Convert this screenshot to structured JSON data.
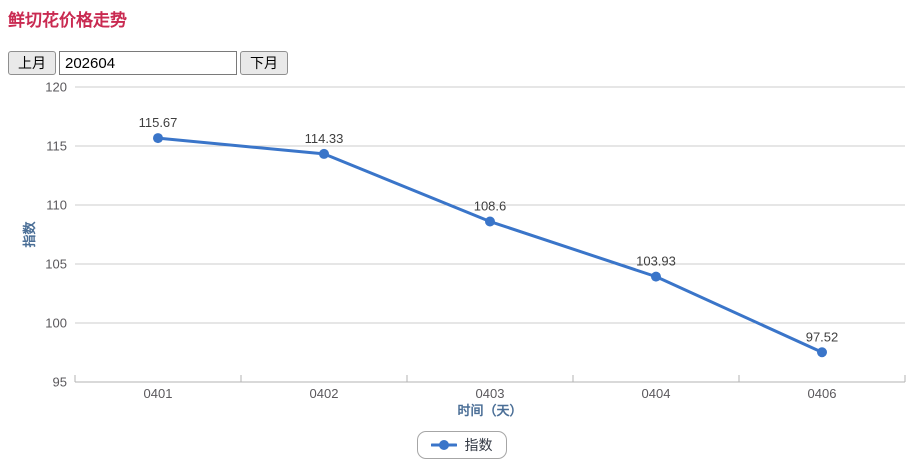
{
  "header": {
    "title": "鲜切花价格走势"
  },
  "controls": {
    "prev_label": "上月",
    "month_value": "202604",
    "next_label": "下月"
  },
  "chart_data": {
    "type": "line",
    "categories": [
      "0401",
      "0402",
      "0403",
      "0404",
      "0406"
    ],
    "series": [
      {
        "name": "指数",
        "values": [
          115.67,
          114.33,
          108.6,
          103.93,
          97.52
        ],
        "color": "#3a75c9"
      }
    ],
    "xlabel": "时间（天）",
    "ylabel": "指数",
    "ylim": [
      95,
      120
    ],
    "yticks": [
      95,
      100,
      105,
      110,
      115,
      120
    ],
    "grid": true,
    "legend_position": "bottom",
    "point_labels_shown": true
  },
  "colors": {
    "title": "#c92a51",
    "line": "#3a75c9",
    "axis_title": "#4a6e96",
    "tick_label": "#5a585c",
    "grid_line": "#cccccc",
    "axis_line": "#b3b3b3",
    "point_label": "#3f3f3f",
    "legend_border": "#a6a6a6",
    "legend_text": "#333944"
  }
}
